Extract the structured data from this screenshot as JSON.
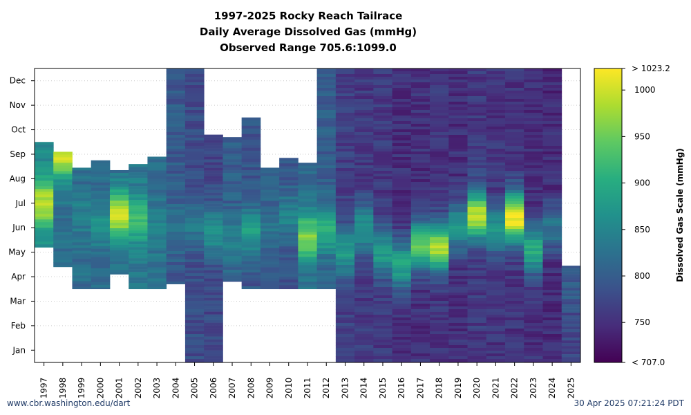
{
  "header": {
    "title_line1": "1997-2025 Rocky Reach Tailrace",
    "title_line2": "Daily Average Dissolved Gas (mmHg)",
    "title_line3": "Observed Range 705.6:1099.0"
  },
  "footer": {
    "source": "www.cbr.washington.edu/dart",
    "timestamp": "30 Apr 2025 07:21:24 PDT"
  },
  "chart_data": {
    "type": "heatmap",
    "title": "1997-2025 Rocky Reach Tailrace Daily Average Dissolved Gas (mmHg)",
    "subtitle": "Observed Range 705.6:1099.0",
    "x_categories": [
      "1997",
      "1998",
      "1999",
      "2000",
      "2001",
      "2002",
      "2003",
      "2004",
      "2005",
      "2006",
      "2007",
      "2008",
      "2009",
      "2010",
      "2011",
      "2012",
      "2013",
      "2014",
      "2015",
      "2016",
      "2017",
      "2018",
      "2019",
      "2020",
      "2021",
      "2022",
      "2023",
      "2024",
      "2025"
    ],
    "y_months": [
      "Jan",
      "Feb",
      "Mar",
      "Apr",
      "May",
      "Jun",
      "Jul",
      "Aug",
      "Sep",
      "Oct",
      "Nov",
      "Dec"
    ],
    "y_unit": "month of year",
    "colorbar": {
      "label": "Dissolved Gas Scale (mmHg)",
      "min": 707.0,
      "max": 1023.2,
      "min_label": "< 707.0",
      "max_label": "> 1023.2",
      "ticks": [
        750,
        800,
        850,
        900,
        950,
        1000
      ],
      "colormap": "viridis"
    },
    "grid": true,
    "coverage": [
      {
        "year": "1997",
        "start_month": 4.7,
        "end_month": 9.0,
        "base": 850,
        "peak_month": 6.5,
        "peak": 990
      },
      {
        "year": "1998",
        "start_month": 3.9,
        "end_month": 8.6,
        "base": 825,
        "peak_month": 8.5,
        "peak": 1000
      },
      {
        "year": "1999",
        "start_month": 3.0,
        "end_month": 7.95,
        "base": 820,
        "peak_month": 6.0,
        "peak": 840
      },
      {
        "year": "2000",
        "start_month": 3.0,
        "end_month": 8.25,
        "base": 815,
        "peak_month": 5.6,
        "peak": 860
      },
      {
        "year": "2001",
        "start_month": 3.6,
        "end_month": 7.85,
        "base": 820,
        "peak_month": 6.0,
        "peak": 1000
      },
      {
        "year": "2002",
        "start_month": 3.0,
        "end_month": 8.1,
        "base": 830,
        "peak_month": 5.8,
        "peak": 920
      },
      {
        "year": "2003",
        "start_month": 3.0,
        "end_month": 8.4,
        "base": 820,
        "peak_month": 5.5,
        "peak": 850
      },
      {
        "year": "2004",
        "start_month": 3.2,
        "end_month": 12.0,
        "base": 795,
        "peak_month": 5.5,
        "peak": 830
      },
      {
        "year": "2005",
        "start_month": 0.0,
        "end_month": 12.0,
        "base": 780,
        "peak_month": 5.5,
        "peak": 830
      },
      {
        "year": "2006",
        "start_month": 0.0,
        "end_month": 9.3,
        "base": 775,
        "peak_month": 5.3,
        "peak": 870
      },
      {
        "year": "2007",
        "start_month": 3.3,
        "end_month": 9.2,
        "base": 800,
        "peak_month": 5.0,
        "peak": 840
      },
      {
        "year": "2008",
        "start_month": 3.0,
        "end_month": 10.0,
        "base": 790,
        "peak_month": 5.3,
        "peak": 880
      },
      {
        "year": "2009",
        "start_month": 3.0,
        "end_month": 7.95,
        "base": 800,
        "peak_month": 5.5,
        "peak": 830
      },
      {
        "year": "2010",
        "start_month": 3.0,
        "end_month": 8.35,
        "base": 790,
        "peak_month": 6.0,
        "peak": 850
      },
      {
        "year": "2011",
        "start_month": 3.0,
        "end_month": 8.15,
        "base": 820,
        "peak_month": 5.1,
        "peak": 960
      },
      {
        "year": "2012",
        "start_month": 3.0,
        "end_month": 12.0,
        "base": 800,
        "peak_month": 5.4,
        "peak": 910
      },
      {
        "year": "2013",
        "start_month": 0.0,
        "end_month": 12.0,
        "base": 765,
        "peak_month": 4.5,
        "peak": 880
      },
      {
        "year": "2014",
        "start_month": 0.0,
        "end_month": 12.0,
        "base": 760,
        "peak_month": 5.5,
        "peak": 870
      },
      {
        "year": "2015",
        "start_month": 0.0,
        "end_month": 12.0,
        "base": 760,
        "peak_month": 4.5,
        "peak": 880
      },
      {
        "year": "2016",
        "start_month": 0.0,
        "end_month": 12.0,
        "base": 750,
        "peak_month": 4.0,
        "peak": 890
      },
      {
        "year": "2017",
        "start_month": 0.0,
        "end_month": 12.0,
        "base": 750,
        "peak_month": 4.8,
        "peak": 940
      },
      {
        "year": "2018",
        "start_month": 0.0,
        "end_month": 12.0,
        "base": 755,
        "peak_month": 4.7,
        "peak": 980
      },
      {
        "year": "2019",
        "start_month": 0.0,
        "end_month": 12.0,
        "base": 750,
        "peak_month": 5.5,
        "peak": 870
      },
      {
        "year": "2020",
        "start_month": 0.0,
        "end_month": 12.0,
        "base": 760,
        "peak_month": 6.0,
        "peak": 990
      },
      {
        "year": "2021",
        "start_month": 0.0,
        "end_month": 12.0,
        "base": 755,
        "peak_month": 5.4,
        "peak": 870
      },
      {
        "year": "2022",
        "start_month": 0.0,
        "end_month": 12.0,
        "base": 755,
        "peak_month": 5.9,
        "peak": 1023
      },
      {
        "year": "2023",
        "start_month": 0.0,
        "end_month": 12.0,
        "base": 750,
        "peak_month": 4.6,
        "peak": 900
      },
      {
        "year": "2024",
        "start_month": 0.0,
        "end_month": 12.0,
        "base": 745,
        "peak_month": 5.5,
        "peak": 830
      },
      {
        "year": "2025",
        "start_month": 0.0,
        "end_month": 3.95,
        "base": 770,
        "peak_month": 3.0,
        "peak": 800
      }
    ]
  }
}
